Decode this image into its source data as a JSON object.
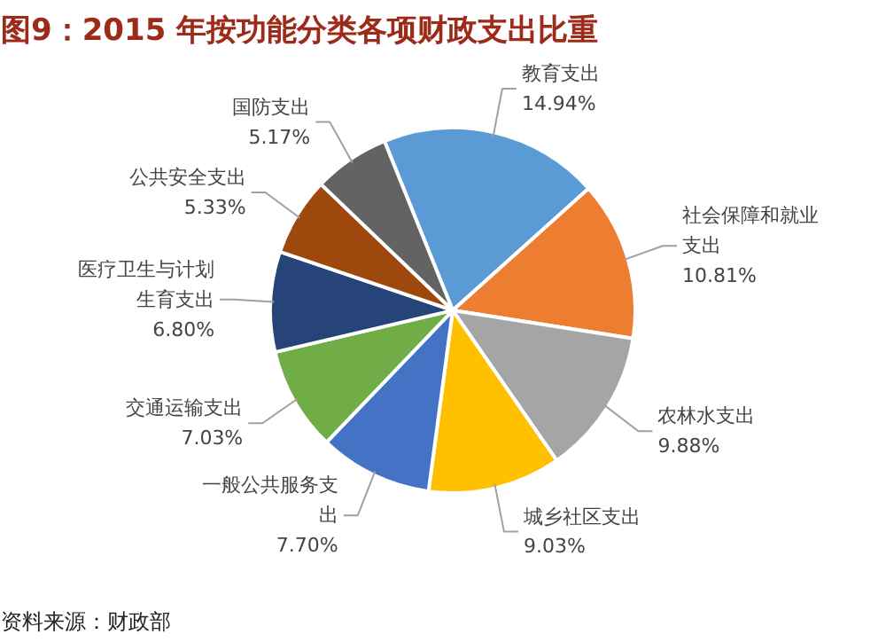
{
  "chart_data": {
    "type": "pie",
    "title": "图9：2015 年按功能分类各项财政支出比重",
    "categories": [
      "教育支出",
      "社会保障和就业支出",
      "农林水支出",
      "城乡社区支出",
      "一般公共服务支出",
      "交通运输支出",
      "医疗卫生与计划生育支出",
      "公共安全支出",
      "国防支出"
    ],
    "values": [
      14.94,
      10.81,
      9.88,
      9.03,
      7.7,
      7.03,
      6.8,
      5.33,
      5.17
    ],
    "value_labels": [
      "14.94%",
      "10.81%",
      "9.88%",
      "9.03%",
      "7.70%",
      "7.03%",
      "6.80%",
      "5.33%",
      "5.17%"
    ],
    "colors": [
      "#5b9bd5",
      "#ed7d31",
      "#a5a5a5",
      "#ffc000",
      "#4472c4",
      "#70ad47",
      "#264478",
      "#9e480e",
      "#636363"
    ],
    "annotations": [
      "资料来源：财政部"
    ]
  }
}
